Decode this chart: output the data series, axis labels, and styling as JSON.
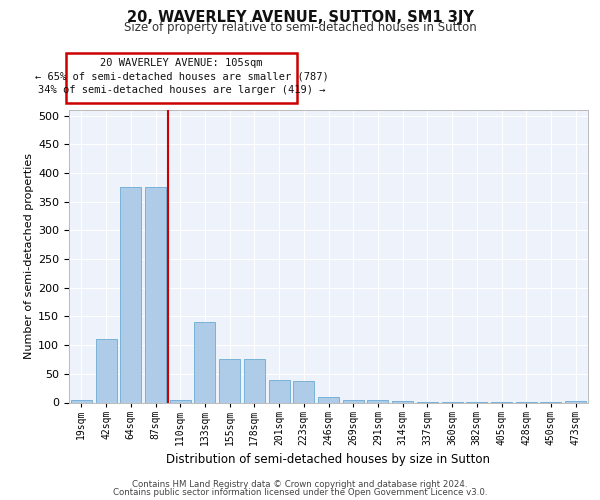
{
  "title": "20, WAVERLEY AVENUE, SUTTON, SM1 3JY",
  "subtitle": "Size of property relative to semi-detached houses in Sutton",
  "xlabel": "Distribution of semi-detached houses by size in Sutton",
  "ylabel": "Number of semi-detached properties",
  "footer_line1": "Contains HM Land Registry data © Crown copyright and database right 2024.",
  "footer_line2": "Contains public sector information licensed under the Open Government Licence v3.0.",
  "annotation_line1": "20 WAVERLEY AVENUE: 105sqm",
  "annotation_line2": "← 65% of semi-detached houses are smaller (787)",
  "annotation_line3": "34% of semi-detached houses are larger (419) →",
  "bar_color": "#aecce8",
  "bar_edge_color": "#6aaad4",
  "property_line_color": "#cc0000",
  "background_color": "#eef2fa",
  "grid_color": "#ffffff",
  "categories": [
    "19sqm",
    "42sqm",
    "64sqm",
    "87sqm",
    "110sqm",
    "133sqm",
    "155sqm",
    "178sqm",
    "201sqm",
    "223sqm",
    "246sqm",
    "269sqm",
    "291sqm",
    "314sqm",
    "337sqm",
    "360sqm",
    "382sqm",
    "405sqm",
    "428sqm",
    "450sqm",
    "473sqm"
  ],
  "values": [
    5,
    110,
    375,
    375,
    5,
    140,
    75,
    75,
    40,
    38,
    10,
    5,
    4,
    3,
    1,
    1,
    1,
    1,
    1,
    1,
    3
  ],
  "ylim": [
    0,
    510
  ],
  "yticks": [
    0,
    50,
    100,
    150,
    200,
    250,
    300,
    350,
    400,
    450,
    500
  ],
  "property_bin_index": 4,
  "ann_box_color": "#cc0000",
  "ann_text_fontsize": 7.5
}
